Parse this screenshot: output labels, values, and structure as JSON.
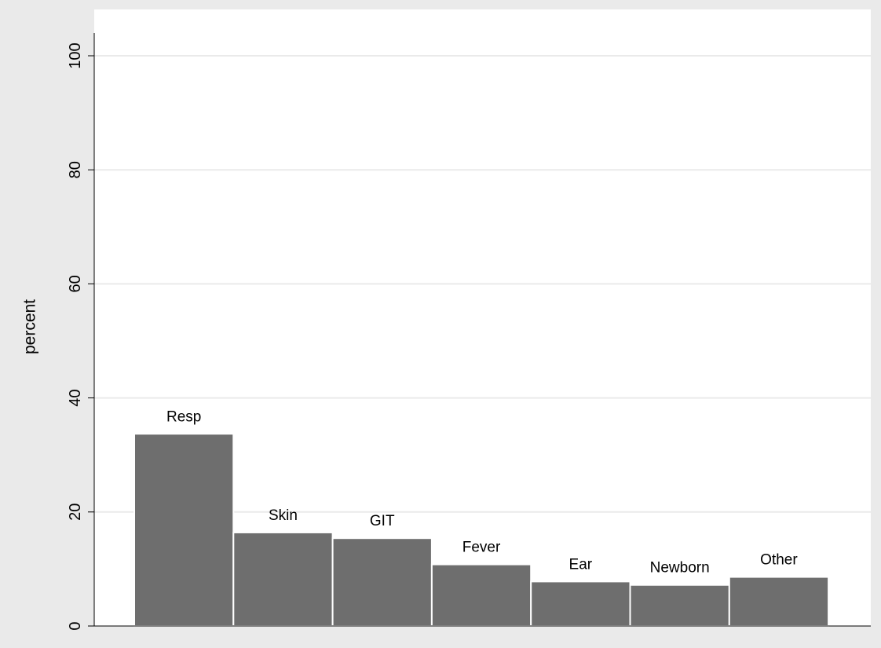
{
  "colors": {
    "outer_background": "#eaeaea",
    "plot_background": "#ffffff",
    "bar_fill": "#6e6e6e",
    "bar_edge": "#ffffff",
    "gridline": "#eaeaea",
    "axis": "#000000",
    "text": "#000000"
  },
  "chart_data": {
    "type": "bar",
    "title": "",
    "xlabel": "",
    "ylabel": "percent",
    "ylim": [
      0,
      100
    ],
    "yticks": [
      0,
      20,
      40,
      60,
      80,
      100
    ],
    "grid": true,
    "legend": "none",
    "categories": [
      "Resp",
      "Skin",
      "GIT",
      "Fever",
      "Ear",
      "Newborn",
      "Other"
    ],
    "values": [
      33.7,
      16.4,
      15.4,
      10.8,
      7.8,
      7.2,
      8.6
    ]
  }
}
